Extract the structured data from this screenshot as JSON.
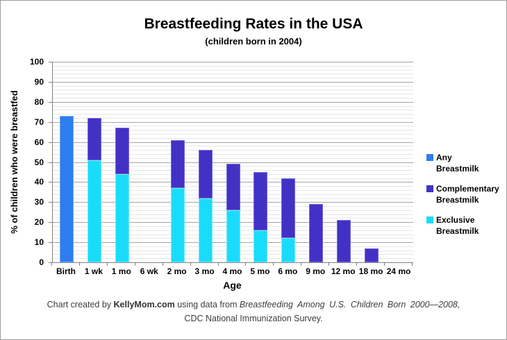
{
  "title": "Breastfeeding Rates in the USA",
  "subtitle": "(children born in 2004)",
  "chart_data": {
    "type": "bar",
    "stacked": true,
    "title": "Breastfeeding Rates in the USA",
    "subtitle": "(children born in 2004)",
    "categories": [
      "Birth",
      "1 wk",
      "1 mo",
      "6 wk",
      "2 mo",
      "3 mo",
      "4 mo",
      "5 mo",
      "6 mo",
      "9 mo",
      "12 mo",
      "18 mo",
      "24 mo"
    ],
    "x_axis": {
      "label": "Age"
    },
    "y_axis": {
      "label": "% of children who were breastfed",
      "min": 0,
      "max": 100,
      "major_step": 10,
      "minor_step": 2
    },
    "grid": "major and minor horizontal gridlines",
    "any_breastmilk_total": [
      73,
      72,
      67,
      null,
      61,
      56,
      49,
      45,
      42,
      29,
      21,
      7,
      null
    ],
    "exclusive_breastmilk": [
      null,
      51,
      44,
      null,
      37,
      32,
      26,
      16,
      12,
      null,
      null,
      null,
      null
    ],
    "bars": [
      {
        "label": "Birth",
        "segments": [
          {
            "series": "any",
            "value": 73
          }
        ]
      },
      {
        "label": "1 wk",
        "segments": [
          {
            "series": "exclusive",
            "value": 51
          },
          {
            "series": "complementary",
            "value": 21
          }
        ]
      },
      {
        "label": "1 mo",
        "segments": [
          {
            "series": "exclusive",
            "value": 44
          },
          {
            "series": "complementary",
            "value": 23
          }
        ]
      },
      {
        "label": "6 wk",
        "segments": []
      },
      {
        "label": "2 mo",
        "segments": [
          {
            "series": "exclusive",
            "value": 37
          },
          {
            "series": "complementary",
            "value": 24
          }
        ]
      },
      {
        "label": "3 mo",
        "segments": [
          {
            "series": "exclusive",
            "value": 32
          },
          {
            "series": "complementary",
            "value": 24
          }
        ]
      },
      {
        "label": "4 mo",
        "segments": [
          {
            "series": "exclusive",
            "value": 26
          },
          {
            "series": "complementary",
            "value": 23
          }
        ]
      },
      {
        "label": "5 mo",
        "segments": [
          {
            "series": "exclusive",
            "value": 16
          },
          {
            "series": "complementary",
            "value": 29
          }
        ]
      },
      {
        "label": "6 mo",
        "segments": [
          {
            "series": "exclusive",
            "value": 12
          },
          {
            "series": "complementary",
            "value": 30
          }
        ]
      },
      {
        "label": "9 mo",
        "segments": [
          {
            "series": "complementary",
            "value": 29
          }
        ]
      },
      {
        "label": "12 mo",
        "segments": [
          {
            "series": "complementary",
            "value": 21
          }
        ]
      },
      {
        "label": "18 mo",
        "segments": [
          {
            "series": "complementary",
            "value": 7
          }
        ]
      },
      {
        "label": "24 mo",
        "segments": []
      }
    ],
    "colors": {
      "any": "#2e7df0",
      "complementary": "#4331c6",
      "exclusive": "#19dcfb"
    },
    "border_colors": {
      "any": "#6faaf6",
      "complementary": "#7468dd",
      "exclusive": "#76ecfd"
    },
    "legend": {
      "position": "right",
      "items": [
        {
          "series": "any",
          "lines": [
            "Any",
            "Breastmilk"
          ]
        },
        {
          "series": "complementary",
          "lines": [
            "Complementary",
            "Breastmilk"
          ]
        },
        {
          "series": "exclusive",
          "lines": [
            "Exclusive",
            "Breastmilk"
          ]
        }
      ]
    }
  },
  "footer": {
    "prefix": "Chart created by ",
    "brand": "KellyMom.com",
    "middle": " using data from ",
    "source_italic": "Breastfeeding Among U.S. Children Born 2000—2008,",
    "line2": "CDC National Immunization Survey."
  }
}
